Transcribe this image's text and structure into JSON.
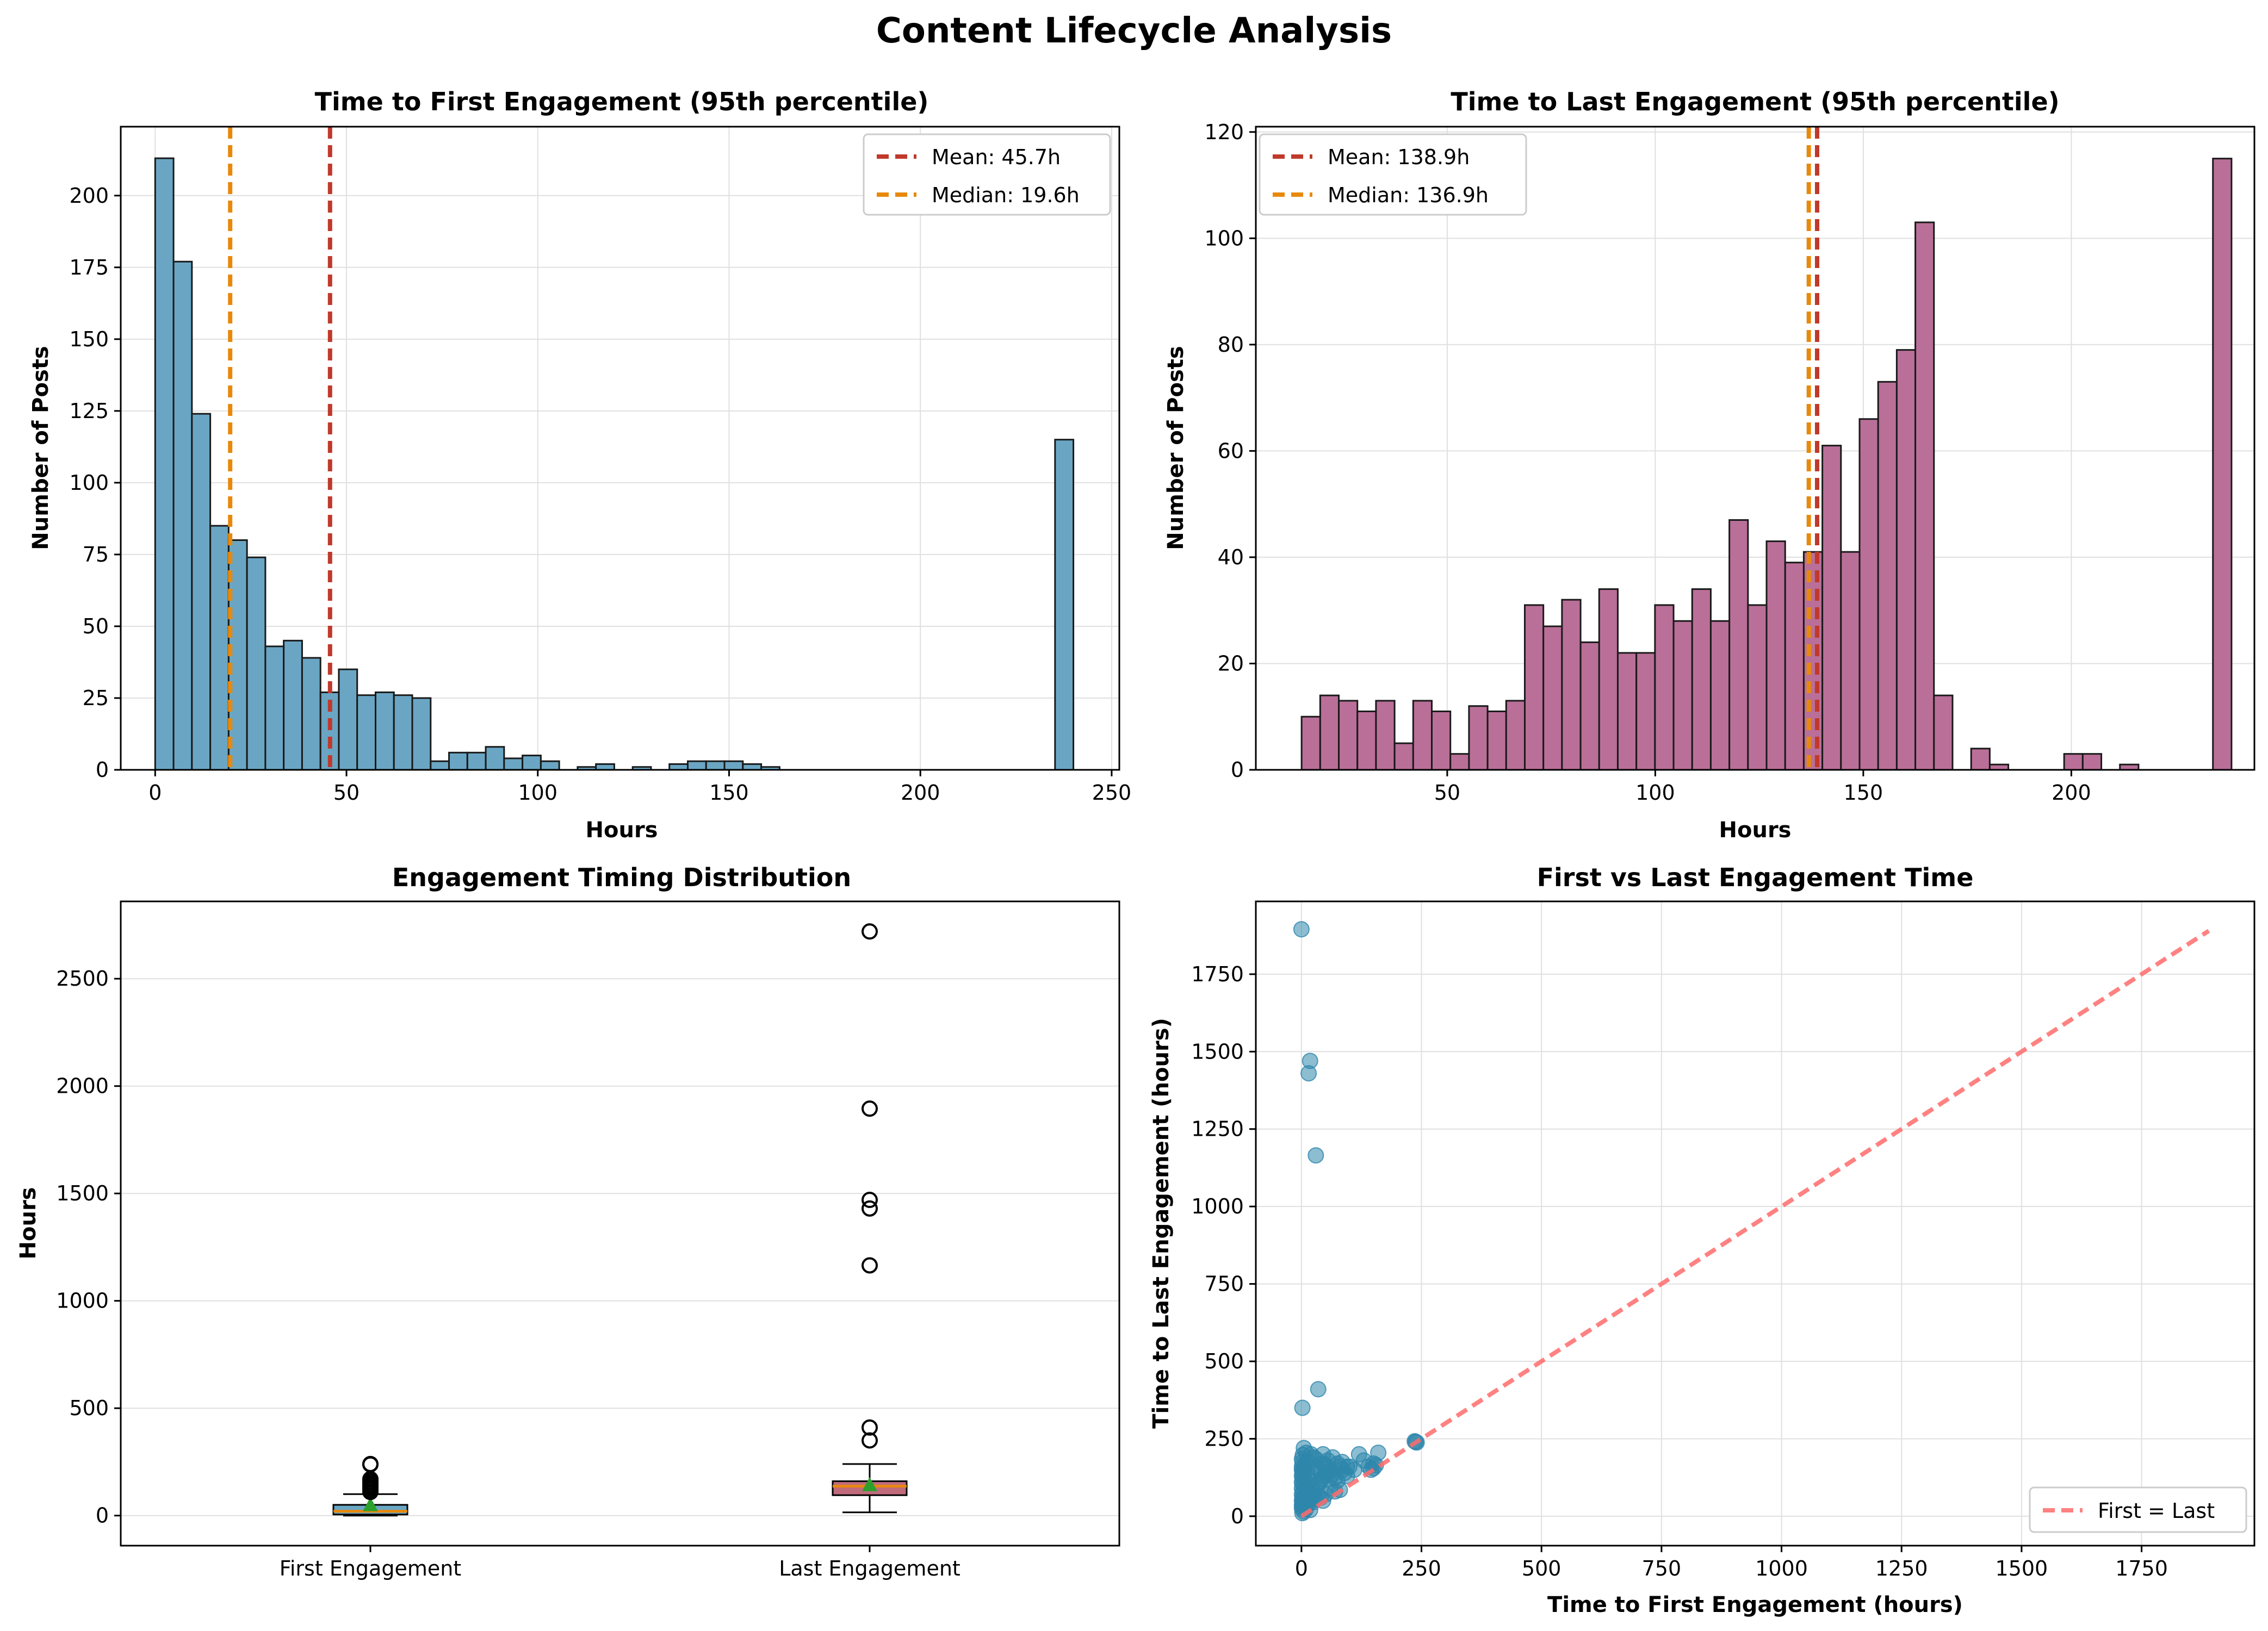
{
  "suptitle": "Content Lifecycle Analysis",
  "colors": {
    "hist1_fill": "#6aa6c4",
    "hist2_fill": "#b96f98",
    "bar_edge": "#1a1a1a",
    "mean": "#c0392b",
    "median": "#e8890c",
    "grid": "#e0e0e0",
    "box_first": "#6aa6c4",
    "box_last": "#c06b7c",
    "box_median": "#e8890c",
    "box_mean_marker": "#2ca02c",
    "scatter": "#2e86ab",
    "diag": "#ff6b6b"
  },
  "chart_data": [
    {
      "id": "first",
      "type": "bar",
      "title": "Time to First Engagement (95th percentile)",
      "xlabel": "Hours",
      "ylabel": "Number of Posts",
      "xlim": [
        -9,
        252
      ],
      "ylim": [
        0,
        224
      ],
      "xticks": [
        0,
        50,
        100,
        150,
        200,
        250
      ],
      "yticks": [
        0,
        25,
        50,
        75,
        100,
        125,
        150,
        175,
        200
      ],
      "bin_start": 0,
      "bin_width": 4.8,
      "values": [
        213,
        177,
        124,
        85,
        80,
        74,
        43,
        45,
        39,
        27,
        35,
        26,
        27,
        26,
        25,
        3,
        6,
        6,
        8,
        4,
        5,
        3,
        0,
        1,
        2,
        0,
        1,
        0,
        2,
        3,
        3,
        3,
        2,
        1,
        0,
        0,
        0,
        0,
        0,
        0,
        0,
        0,
        0,
        0,
        0,
        0,
        0,
        0,
        0,
        115
      ],
      "vlines": [
        {
          "label": "Mean: 45.7h",
          "x": 45.7,
          "color_key": "mean"
        },
        {
          "label": "Median: 19.6h",
          "x": 19.6,
          "color_key": "median"
        }
      ],
      "legend_position": "upper right",
      "grid": true
    },
    {
      "id": "last",
      "type": "bar",
      "title": "Time to Last Engagement (95th percentile)",
      "xlabel": "Hours",
      "ylabel": "Number of Posts",
      "xlim": [
        4,
        244
      ],
      "ylim": [
        0,
        121
      ],
      "xticks": [
        50,
        100,
        150,
        200
      ],
      "yticks": [
        0,
        20,
        40,
        60,
        80,
        100,
        120
      ],
      "bin_start": 15,
      "bin_width": 4.47,
      "values": [
        10,
        14,
        13,
        11,
        13,
        5,
        13,
        11,
        3,
        12,
        11,
        13,
        31,
        27,
        32,
        24,
        34,
        22,
        22,
        31,
        28,
        34,
        28,
        47,
        31,
        43,
        39,
        41,
        61,
        41,
        66,
        73,
        79,
        103,
        14,
        0,
        4,
        1,
        0,
        0,
        0,
        3,
        3,
        0,
        1,
        0,
        0,
        0,
        0,
        115
      ],
      "vlines": [
        {
          "label": "Mean: 138.9h",
          "x": 138.9,
          "color_key": "mean"
        },
        {
          "label": "Median: 136.9h",
          "x": 136.9,
          "color_key": "median"
        }
      ],
      "legend_position": "upper left",
      "grid": true
    },
    {
      "id": "box",
      "type": "box",
      "title": "Engagement Timing Distribution",
      "ylabel": "Hours",
      "ylim": [
        -140,
        2860
      ],
      "yticks": [
        0,
        500,
        1000,
        1500,
        2000,
        2500
      ],
      "categories": [
        "First Engagement",
        "Last Engagement"
      ],
      "boxes": [
        {
          "q1": 5,
          "median": 20,
          "q3": 50,
          "whisker_low": 0,
          "whisker_high": 100,
          "mean": 45.7,
          "outliers": [
            110,
            120,
            130,
            140,
            150,
            160,
            170,
            238,
            240
          ]
        },
        {
          "q1": 95,
          "median": 137,
          "q3": 160,
          "whisker_low": 15,
          "whisker_high": 240,
          "mean": 138.9,
          "outliers": [
            350,
            410,
            1165,
            1430,
            1470,
            1895,
            2720
          ]
        }
      ],
      "grid": true
    },
    {
      "id": "scatter",
      "type": "scatter",
      "title": "First vs Last Engagement Time",
      "xlabel": "Time to First Engagement (hours)",
      "ylabel": "Time to Last Engagement (hours)",
      "xlim": [
        -95,
        1985
      ],
      "ylim": [
        -95,
        1985
      ],
      "xticks": [
        0,
        250,
        500,
        750,
        1000,
        1250,
        1500,
        1750
      ],
      "yticks": [
        0,
        250,
        500,
        750,
        1000,
        1250,
        1500,
        1750
      ],
      "series": [
        {
          "points": [
            [
              0,
              1895
            ],
            [
              18,
              1470
            ],
            [
              15,
              1430
            ],
            [
              30,
              1165
            ],
            [
              35,
              410
            ],
            [
              2,
              350
            ],
            [
              238,
              240
            ],
            [
              240,
              238
            ],
            [
              236,
              242
            ],
            [
              5,
              220
            ],
            [
              10,
              205
            ],
            [
              3,
              198
            ],
            [
              1,
              185
            ],
            [
              2,
              175
            ],
            [
              8,
              170
            ],
            [
              1,
              160
            ],
            [
              4,
              155
            ],
            [
              1,
              150
            ],
            [
              6,
              145
            ],
            [
              2,
              140
            ],
            [
              12,
              138
            ],
            [
              1,
              130
            ],
            [
              3,
              125
            ],
            [
              7,
              120
            ],
            [
              15,
              115
            ],
            [
              1,
              110
            ],
            [
              2,
              105
            ],
            [
              20,
              100
            ],
            [
              5,
              95
            ],
            [
              1,
              90
            ],
            [
              10,
              85
            ],
            [
              3,
              80
            ],
            [
              25,
              78
            ],
            [
              1,
              70
            ],
            [
              2,
              60
            ],
            [
              4,
              55
            ],
            [
              1,
              50
            ],
            [
              6,
              45
            ],
            [
              2,
              40
            ],
            [
              1,
              35
            ],
            [
              3,
              30
            ],
            [
              1,
              25
            ],
            [
              30,
              160
            ],
            [
              35,
              150
            ],
            [
              40,
              140
            ],
            [
              45,
              170
            ],
            [
              50,
              165
            ],
            [
              55,
              155
            ],
            [
              60,
              145
            ],
            [
              65,
              135
            ],
            [
              70,
              125
            ],
            [
              75,
              115
            ],
            [
              80,
              160
            ],
            [
              85,
              150
            ],
            [
              90,
              140
            ],
            [
              95,
              130
            ],
            [
              60,
              90
            ],
            [
              70,
              80
            ],
            [
              80,
              85
            ],
            [
              50,
              70
            ],
            [
              40,
              60
            ],
            [
              45,
              50
            ],
            [
              120,
              200
            ],
            [
              140,
              160
            ],
            [
              150,
              170
            ],
            [
              160,
              205
            ],
            [
              145,
              150
            ],
            [
              155,
              165
            ],
            [
              130,
              180
            ],
            [
              100,
              160
            ],
            [
              110,
              150
            ],
            [
              20,
              200
            ],
            [
              25,
              190
            ],
            [
              30,
              185
            ],
            [
              15,
              175
            ],
            [
              45,
              200
            ],
            [
              55,
              180
            ],
            [
              65,
              190
            ],
            [
              75,
              170
            ],
            [
              85,
              175
            ],
            [
              95,
              160
            ],
            [
              12,
              60
            ],
            [
              18,
              55
            ],
            [
              22,
              70
            ],
            [
              28,
              90
            ],
            [
              33,
              100
            ],
            [
              38,
              110
            ],
            [
              42,
              120
            ],
            [
              48,
              130
            ],
            [
              52,
              140
            ],
            [
              58,
              120
            ],
            [
              8,
              30
            ],
            [
              14,
              40
            ],
            [
              18,
              20
            ],
            [
              24,
              45
            ],
            [
              29,
              55
            ],
            [
              35,
              65
            ],
            [
              2,
              10
            ],
            [
              5,
              15
            ],
            [
              9,
              22
            ],
            [
              150,
              155
            ]
          ]
        }
      ],
      "diagonal": {
        "label": "First = Last",
        "from": [
          0,
          0
        ],
        "to": [
          1890,
          1890
        ]
      },
      "legend_position": "lower right",
      "grid": true
    }
  ]
}
